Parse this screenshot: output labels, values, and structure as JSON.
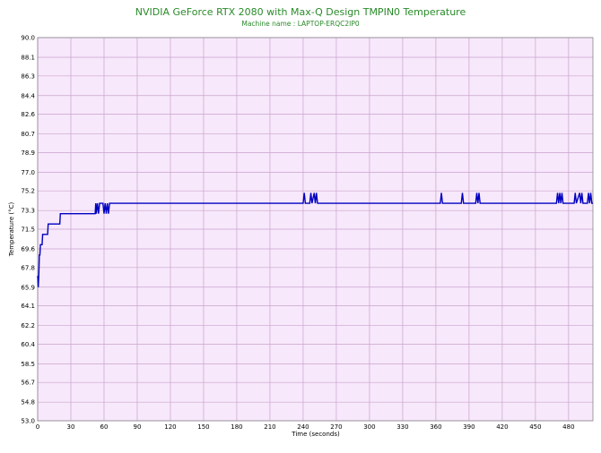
{
  "chart_data": {
    "type": "line",
    "title": "NVIDIA GeForce RTX 2080 with Max-Q Design TMPIN0 Temperature",
    "subtitle": "Machine name : LAPTOP-ERQC2IP0",
    "x_label": "Time (seconds)",
    "y_label": "Temperature (°C)",
    "x": [
      0,
      0.5,
      1,
      1.5,
      2,
      2.5,
      4,
      4.5,
      9,
      9.5,
      20,
      20.5,
      52,
      52.5,
      53,
      54,
      55,
      56,
      59,
      60,
      61,
      62,
      63,
      64,
      65,
      240,
      241,
      242,
      246,
      247,
      248,
      250,
      251,
      252,
      253,
      364,
      365,
      366,
      383,
      384,
      385,
      396,
      397,
      398,
      399,
      400,
      469,
      470,
      471,
      472,
      473,
      474,
      475,
      485,
      486,
      487,
      490,
      491,
      492,
      493,
      497,
      498,
      499,
      500,
      501,
      502
    ],
    "series": [
      {
        "name": "TMPIN0",
        "color": "#0000c0",
        "values": [
          67,
          65.9,
          67,
          69,
          69,
          70,
          70,
          71,
          71,
          72,
          72,
          73,
          73,
          74,
          73,
          74,
          73,
          74,
          74,
          73,
          74,
          73,
          74,
          73,
          74,
          74,
          75,
          74,
          74,
          75,
          74,
          75,
          74,
          75,
          74,
          74,
          75,
          74,
          74,
          75,
          74,
          74,
          75,
          74,
          75,
          74,
          74,
          75,
          74,
          75,
          74,
          75,
          74,
          74,
          75,
          74,
          75,
          74,
          75,
          74,
          74,
          75,
          74,
          75,
          74,
          74
        ]
      }
    ],
    "xlim": [
      0,
      502
    ],
    "xticks": [
      0,
      30,
      60,
      90,
      120,
      150,
      180,
      210,
      240,
      270,
      300,
      330,
      360,
      390,
      420,
      450,
      480
    ],
    "ylim": [
      53,
      90
    ],
    "yticks": [
      {
        "value": 53,
        "label": "53.0"
      },
      54.8,
      56.7,
      58.5,
      60.4,
      62.2,
      64.1,
      65.9,
      67.8,
      69.6,
      71.5,
      73.3,
      75.2,
      {
        "value": 77,
        "label": "77.0"
      },
      78.9,
      80.7,
      82.6,
      84.4,
      86.3,
      88.1,
      {
        "value": 90,
        "label": "90.0"
      }
    ],
    "grid": true
  }
}
